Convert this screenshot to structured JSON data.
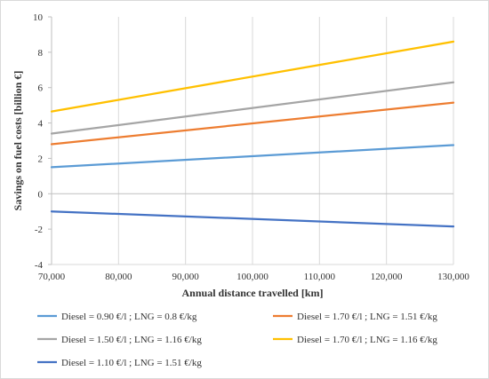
{
  "chart_data": {
    "type": "line",
    "xlabel": "Annual distance travelled [km]",
    "ylabel": "Savings on fuel costs [billion €]",
    "xlim": [
      70000,
      130000
    ],
    "ylim": [
      -4,
      10
    ],
    "x_ticks": [
      70000,
      80000,
      90000,
      100000,
      110000,
      120000,
      130000
    ],
    "y_ticks": [
      -4,
      -2,
      0,
      2,
      4,
      6,
      8,
      10
    ],
    "x_tick_labels": [
      "70,000",
      "80,000",
      "90,000",
      "100,000",
      "110,000",
      "120,000",
      "130,000"
    ],
    "y_tick_labels": [
      "-4",
      "-2",
      "0",
      "2",
      "4",
      "6",
      "8",
      "10"
    ],
    "grid": "vertical",
    "legend_position": "bottom",
    "x": [
      70000,
      130000
    ],
    "series": [
      {
        "name": "Diesel = 0.90 €/l ; LNG = 0.8 €/kg",
        "color": "#5B9BD5",
        "values": [
          1.5,
          2.75
        ]
      },
      {
        "name": "Diesel = 1.70 €/l ; LNG = 1.51 €/kg",
        "color": "#ED7D31",
        "values": [
          2.8,
          5.15
        ]
      },
      {
        "name": "Diesel = 1.50 €/l ; LNG = 1.16 €/kg",
        "color": "#A5A5A5",
        "values": [
          3.4,
          6.3
        ]
      },
      {
        "name": "Diesel = 1.70 €/l ; LNG = 1.16 €/kg",
        "color": "#FFC000",
        "values": [
          4.65,
          8.6
        ]
      },
      {
        "name": "Diesel = 1.10 €/l ; LNG = 1.51 €/kg",
        "color": "#4472C4",
        "values": [
          -1.0,
          -1.85
        ]
      }
    ]
  }
}
